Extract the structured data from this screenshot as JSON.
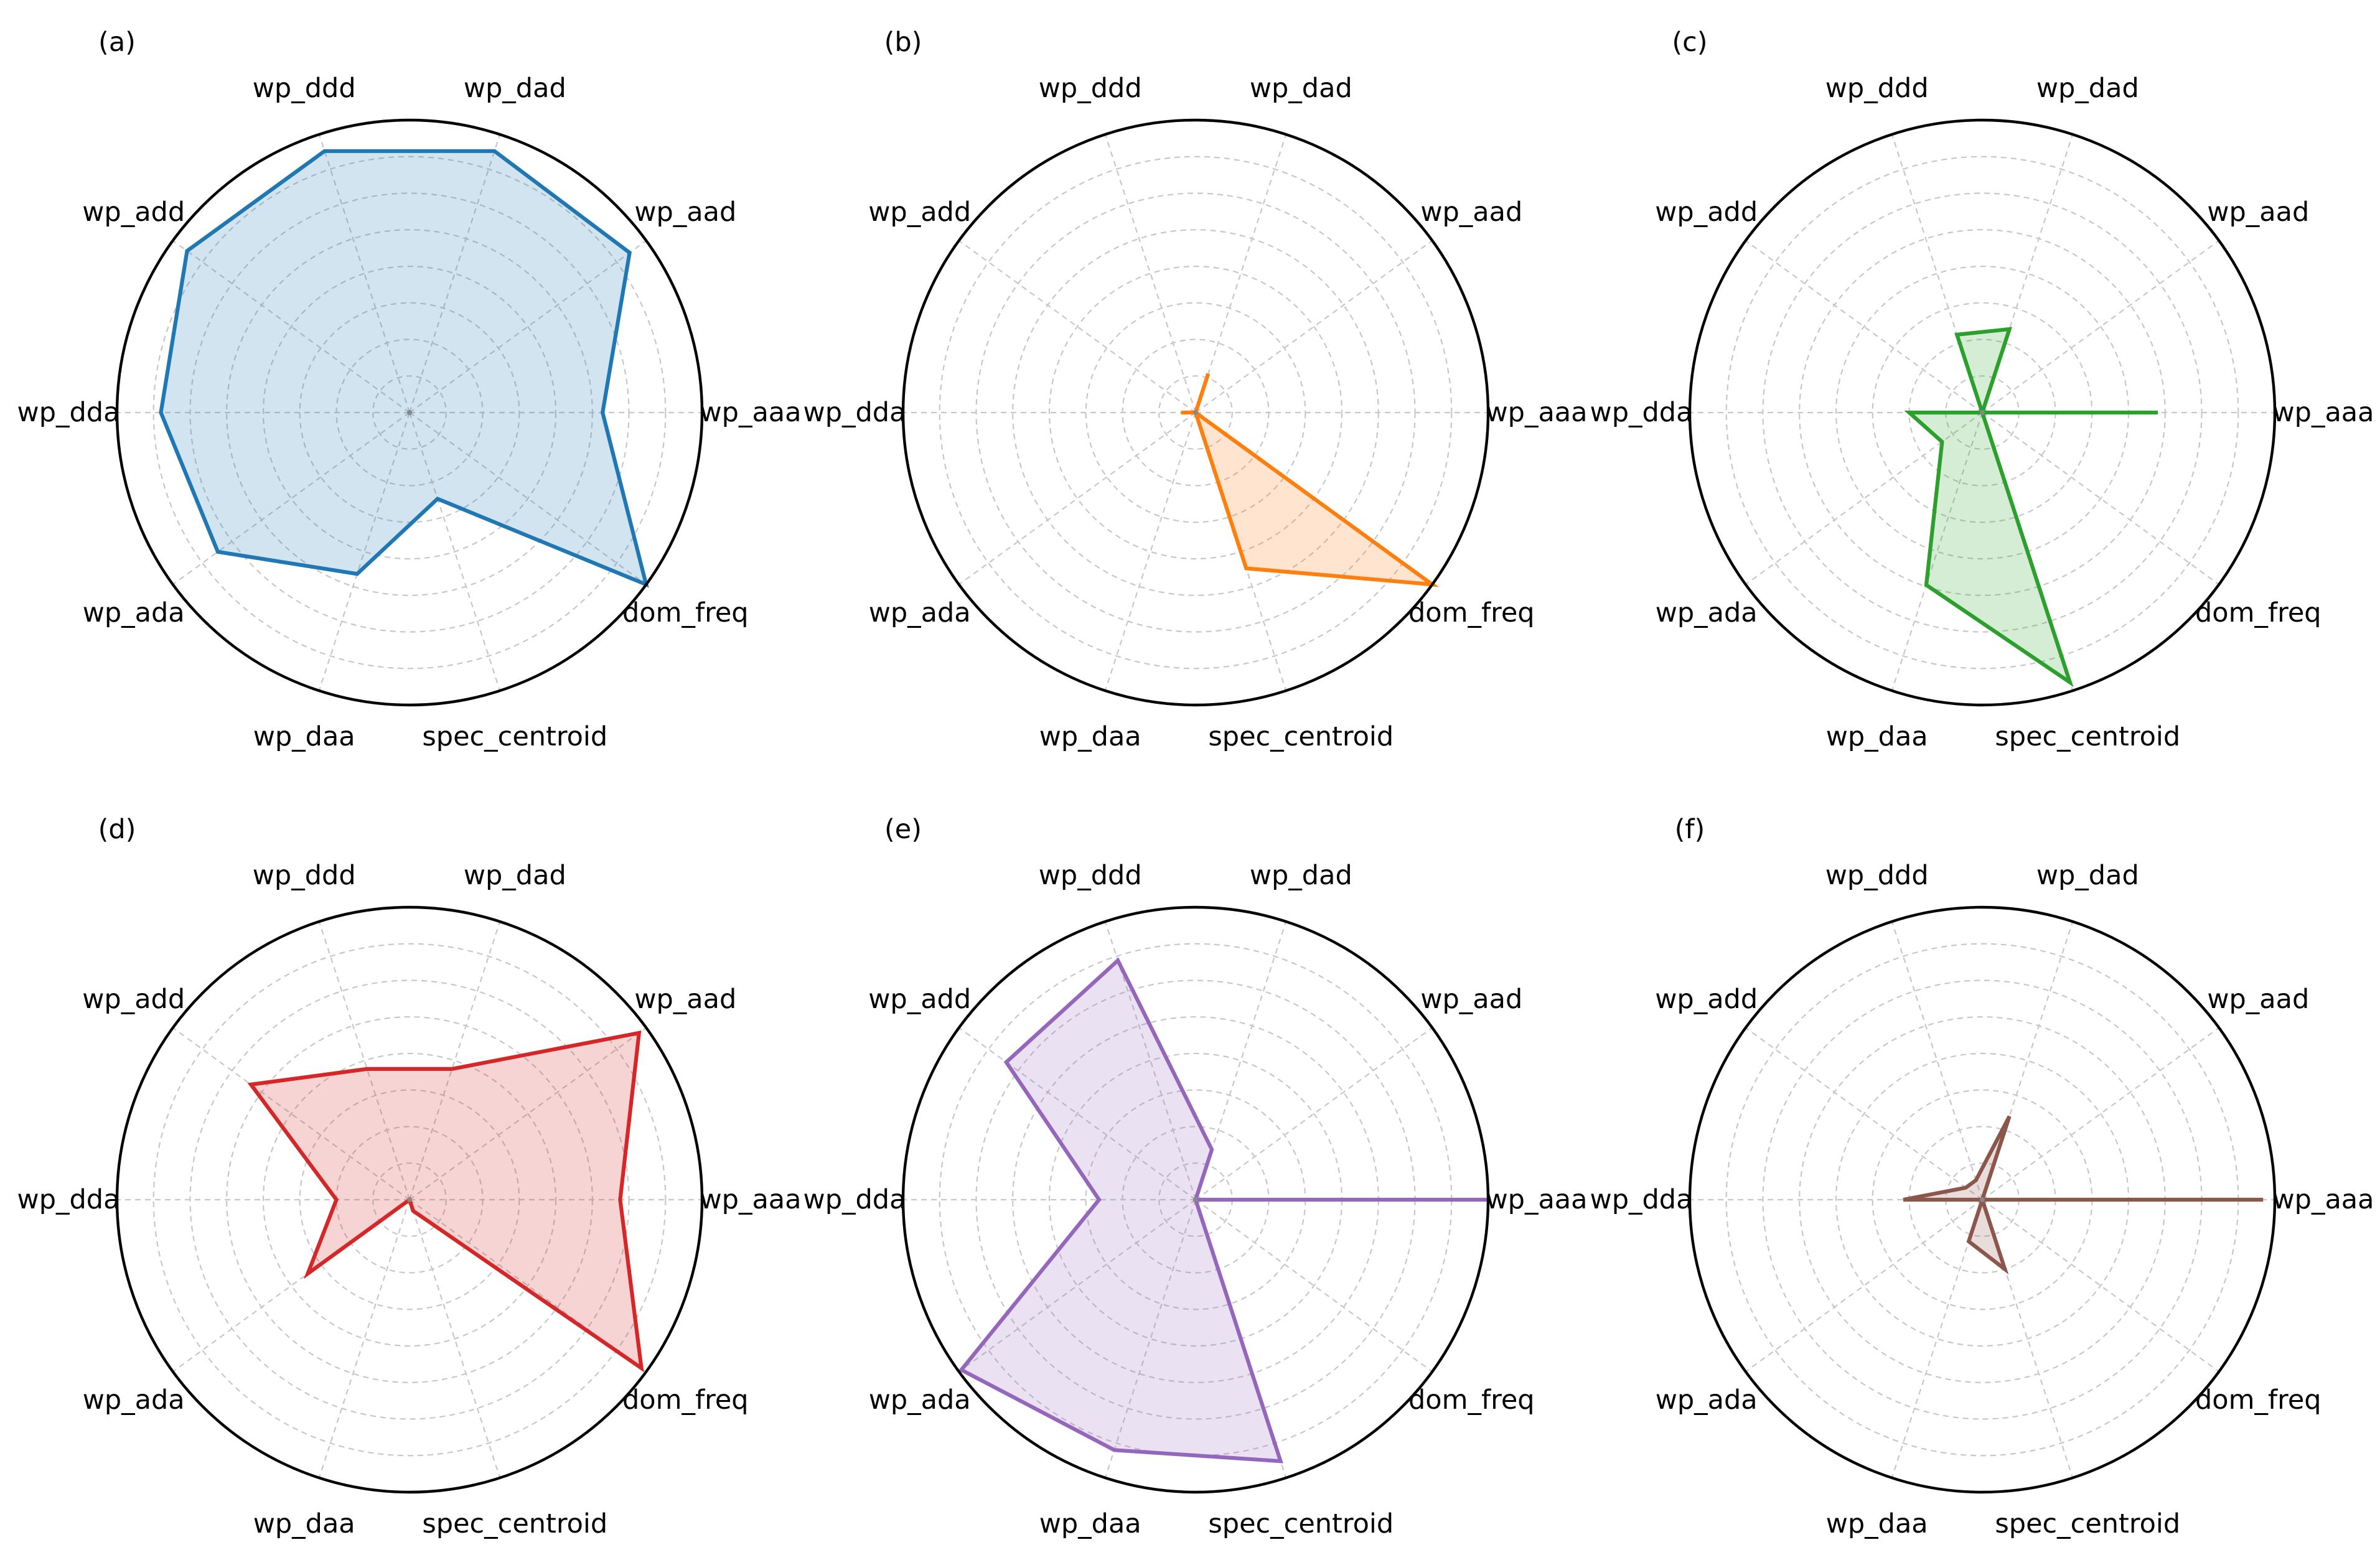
{
  "chart_data": [
    {
      "type": "radar",
      "panel_label": "(a)",
      "axes": [
        "wp_aaa",
        "wp_aad",
        "wp_dad",
        "wp_ddd",
        "wp_add",
        "wp_dda",
        "wp_ada",
        "wp_daa",
        "spec_centroid",
        "dom_freq"
      ],
      "rlim": [
        0,
        1
      ],
      "grid": true,
      "filled": true,
      "series": [
        {
          "values": [
            0.66,
            0.93,
            0.94,
            0.94,
            0.94,
            0.85,
            0.81,
            0.58,
            0.31,
            1.0
          ],
          "color": "#1f77b4"
        }
      ]
    },
    {
      "type": "radar",
      "panel_label": "(b)",
      "axes": [
        "wp_aaa",
        "wp_aad",
        "wp_dad",
        "wp_ddd",
        "wp_add",
        "wp_dda",
        "wp_ada",
        "wp_daa",
        "spec_centroid",
        "dom_freq"
      ],
      "rlim": [
        0,
        1
      ],
      "grid": true,
      "filled": true,
      "series": [
        {
          "values": [
            0.0,
            0.0,
            0.14,
            0.0,
            0.0,
            0.05,
            0.0,
            0.0,
            0.56,
            1.0
          ],
          "color": "#ff7f0e"
        }
      ]
    },
    {
      "type": "radar",
      "panel_label": "(c)",
      "axes": [
        "wp_aaa",
        "wp_aad",
        "wp_dad",
        "wp_ddd",
        "wp_add",
        "wp_dda",
        "wp_ada",
        "wp_daa",
        "spec_centroid",
        "dom_freq"
      ],
      "rlim": [
        0,
        1
      ],
      "grid": true,
      "filled": true,
      "series": [
        {
          "values": [
            0.6,
            0.0,
            0.3,
            0.28,
            0.0,
            0.25,
            0.17,
            0.62,
            0.97,
            0.0
          ],
          "color": "#2ca02c"
        }
      ]
    },
    {
      "type": "radar",
      "panel_label": "(d)",
      "axes": [
        "wp_aaa",
        "wp_aad",
        "wp_dad",
        "wp_ddd",
        "wp_add",
        "wp_dda",
        "wp_ada",
        "wp_daa",
        "spec_centroid",
        "dom_freq"
      ],
      "rlim": [
        0,
        1
      ],
      "grid": true,
      "filled": true,
      "series": [
        {
          "values": [
            0.72,
            0.97,
            0.47,
            0.47,
            0.67,
            0.25,
            0.43,
            0.0,
            0.04,
            0.98
          ],
          "color": "#d62728"
        }
      ]
    },
    {
      "type": "radar",
      "panel_label": "(e)",
      "axes": [
        "wp_aaa",
        "wp_aad",
        "wp_dad",
        "wp_ddd",
        "wp_add",
        "wp_dda",
        "wp_ada",
        "wp_daa",
        "spec_centroid",
        "dom_freq"
      ],
      "rlim": [
        0,
        1
      ],
      "grid": true,
      "filled": true,
      "series": [
        {
          "values": [
            1.0,
            0.0,
            0.18,
            0.86,
            0.8,
            0.33,
            0.99,
            0.9,
            0.94,
            0.0
          ],
          "color": "#9467bd"
        }
      ]
    },
    {
      "type": "radar",
      "panel_label": "(f)",
      "axes": [
        "wp_aaa",
        "wp_aad",
        "wp_dad",
        "wp_ddd",
        "wp_add",
        "wp_dda",
        "wp_ada",
        "wp_daa",
        "spec_centroid",
        "dom_freq"
      ],
      "rlim": [
        0,
        1
      ],
      "grid": true,
      "filled": true,
      "series": [
        {
          "values": [
            0.96,
            0.0,
            0.3,
            0.07,
            0.07,
            0.27,
            0.0,
            0.15,
            0.25,
            0.0
          ],
          "color": "#8c564b"
        }
      ]
    }
  ]
}
